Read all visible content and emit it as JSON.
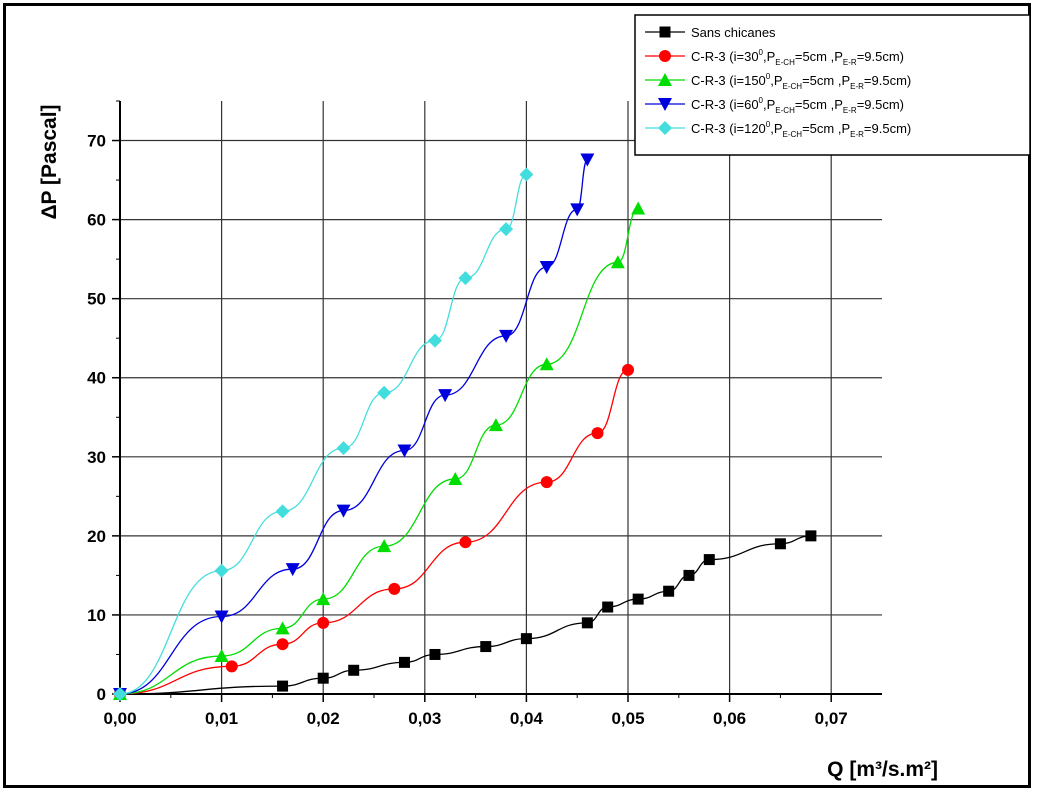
{
  "chart_data": {
    "type": "line",
    "xlabel": "Q [m³/s.m²]",
    "ylabel": "ΔP [Pascal]",
    "xlim": [
      0,
      0.075
    ],
    "ylim": [
      0,
      75
    ],
    "x_ticks": [
      "0,00",
      "0,01",
      "0,02",
      "0,03",
      "0,04",
      "0,05",
      "0,06",
      "0,07"
    ],
    "y_ticks": [
      "0",
      "10",
      "20",
      "30",
      "40",
      "50",
      "60",
      "70"
    ],
    "grid": true,
    "legend_position": "top-right",
    "series": [
      {
        "name": "Sans chicanes",
        "color": "#000000",
        "marker": "square",
        "x": [
          0.0,
          0.016,
          0.02,
          0.023,
          0.028,
          0.031,
          0.036,
          0.04,
          0.046,
          0.048,
          0.051,
          0.054,
          0.056,
          0.058,
          0.065,
          0.068
        ],
        "y": [
          0,
          1,
          2,
          3,
          4,
          5,
          6,
          7,
          9,
          11,
          12,
          13,
          15,
          17,
          19,
          20
        ]
      },
      {
        "name": "C-R-3 (i=30°,P E-CH=5cm ,P E-R=9.5cm)",
        "legend": {
          "prefix": "C-R-3 (i=30",
          "deg": "0",
          "mid": ",P",
          "sub1": "E-CH",
          "mid2": "=5cm ,P",
          "sub2": "E-R",
          "suffix": "=9.5cm)"
        },
        "color": "#ff0000",
        "marker": "circle",
        "x": [
          0.0,
          0.011,
          0.016,
          0.02,
          0.027,
          0.034,
          0.042,
          0.047,
          0.05
        ],
        "y": [
          0,
          3.5,
          6.3,
          9,
          13.3,
          19.2,
          26.8,
          33,
          41
        ]
      },
      {
        "name": "C-R-3 (i=150°,P E-CH=5cm ,P E-R=9.5cm)",
        "legend": {
          "prefix": "C-R-3 (i=150",
          "deg": "0",
          "mid": ",P",
          "sub1": "E-CH",
          "mid2": "=5cm ,P",
          "sub2": "E-R",
          "suffix": "=9.5cm)"
        },
        "color": "#00dd00",
        "marker": "triangle-up",
        "x": [
          0.0,
          0.01,
          0.016,
          0.02,
          0.026,
          0.033,
          0.037,
          0.042,
          0.049,
          0.051
        ],
        "y": [
          0,
          4.8,
          8.3,
          12,
          18.7,
          27.2,
          34,
          41.7,
          54.6,
          61.4
        ]
      },
      {
        "name": "C-R-3 (i=60°,P E-CH=5cm ,P E-R=9.5cm)",
        "legend": {
          "prefix": "C-R-3 (i=60",
          "deg": "0",
          "mid": ",P",
          "sub1": "E-CH",
          "mid2": "=5cm ,P",
          "sub2": "E-R",
          "suffix": "=9.5cm)"
        },
        "color": "#0000dd",
        "marker": "triangle-down",
        "x": [
          0.0,
          0.01,
          0.017,
          0.022,
          0.028,
          0.032,
          0.038,
          0.042,
          0.045,
          0.046
        ],
        "y": [
          0,
          9.8,
          15.8,
          23.2,
          30.8,
          37.8,
          45.3,
          54,
          61.3,
          67.6
        ]
      },
      {
        "name": "C-R-3 (i=120°,P E-CH=5cm ,P E-R=9.5cm)",
        "legend": {
          "prefix": "C-R-3 (i=120",
          "deg": "0",
          "mid": ",P",
          "sub1": "E-CH",
          "mid2": "=5cm ,P",
          "sub2": "E-R",
          "suffix": "=9.5cm)"
        },
        "color": "#44dddd",
        "marker": "diamond",
        "x": [
          0.0,
          0.01,
          0.016,
          0.022,
          0.026,
          0.031,
          0.034,
          0.038,
          0.04
        ],
        "y": [
          0,
          15.6,
          23.1,
          31.1,
          38.1,
          44.7,
          52.6,
          58.8,
          65.7
        ]
      }
    ]
  }
}
